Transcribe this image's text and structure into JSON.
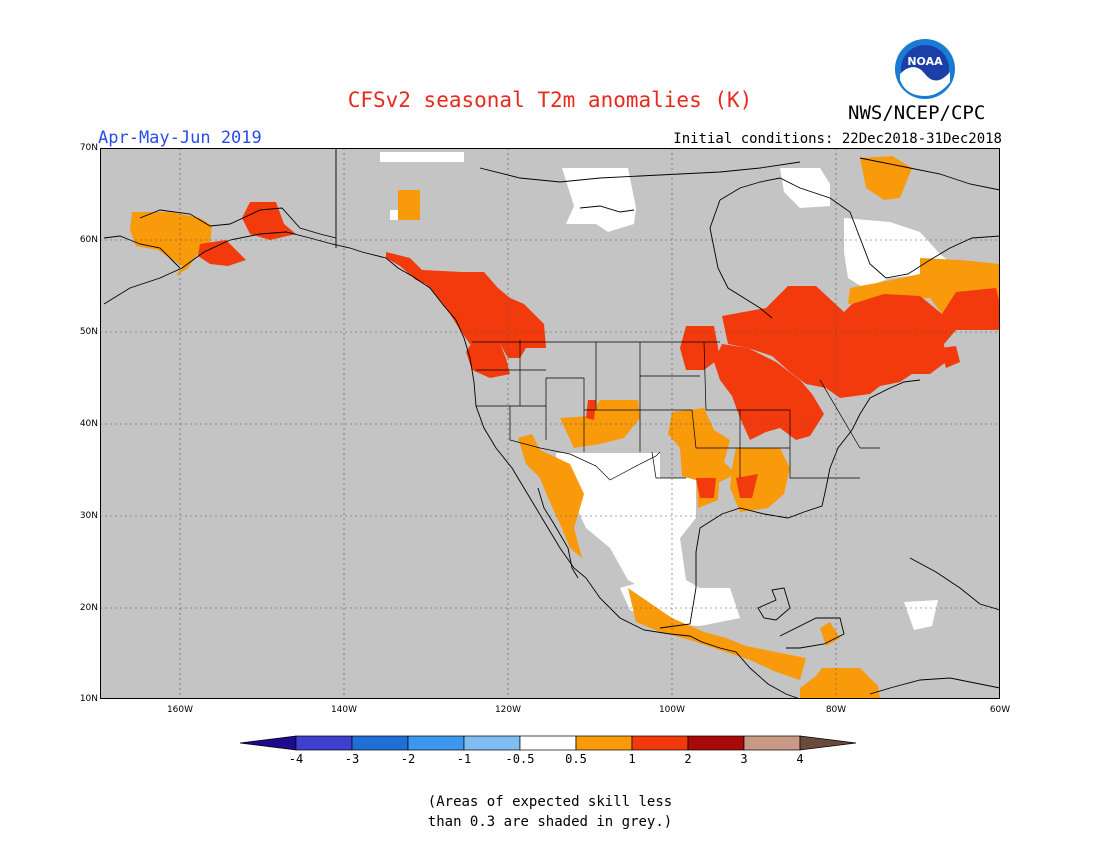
{
  "title": "CFSv2 seasonal T2m anomalies (K)",
  "agency": "NWS/NCEP/CPC",
  "logo_text": "NOAA",
  "period": "Apr-May-Jun 2019",
  "initial_conditions": "Initial conditions: 22Dec2018-31Dec2018",
  "lat_labels": [
    "70N",
    "60N",
    "50N",
    "40N",
    "30N",
    "20N",
    "10N"
  ],
  "lon_labels": [
    "160W",
    "140W",
    "120W",
    "100W",
    "80W",
    "60W"
  ],
  "colorbar": {
    "labels": [
      "-4",
      "-3",
      "-2",
      "-1",
      "-0.5",
      "0.5",
      "1",
      "2",
      "3",
      "4"
    ],
    "colors": [
      "#1e0a8c",
      "#3f3fd0",
      "#1f6fd6",
      "#3c98ef",
      "#7fbdf2",
      "#ffffff",
      "#f99a0b",
      "#f23a0c",
      "#a80a0a",
      "#c89a85",
      "#6a4a3a"
    ]
  },
  "note_line1": "(Areas of expected skill less",
  "note_line2": "than 0.3 are shaded in grey.)",
  "colors": {
    "grey": "#c4c4c4",
    "white": "#ffffff",
    "orange": "#f99a0b",
    "red": "#f23a0c"
  }
}
